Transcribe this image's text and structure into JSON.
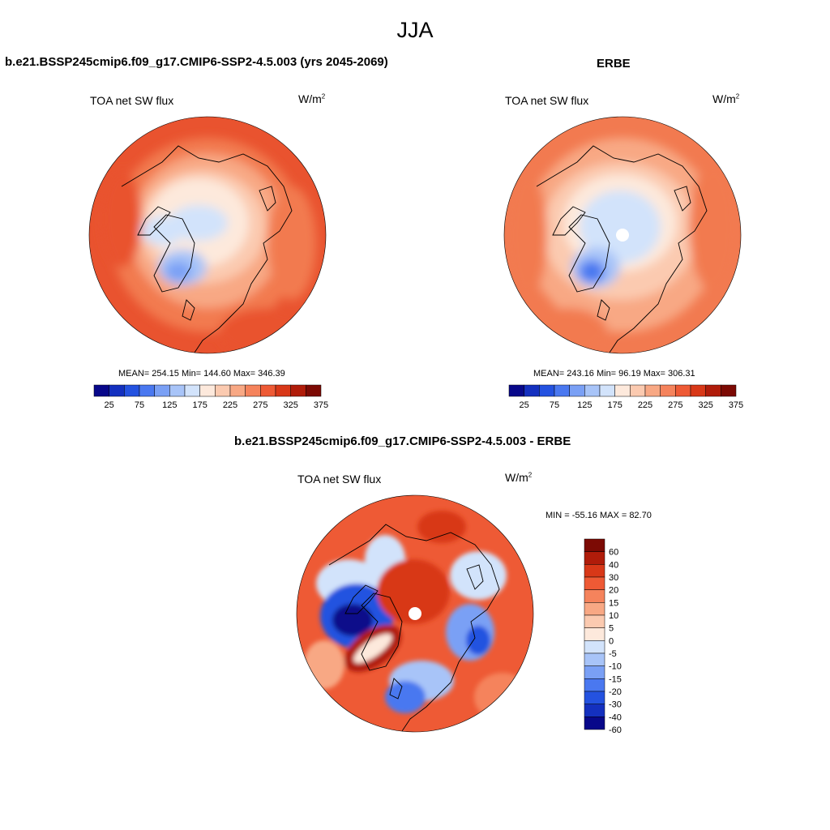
{
  "figure_title": "JJA",
  "panels": [
    {
      "title": "b.e21.BSSP245cmip6.f09_g17.CMIP6-SSP2-4.5.003 (yrs 2045-2069)",
      "variable": "TOA net SW flux",
      "units_base": "W/m",
      "units_exp": "2",
      "stats_text": "MEAN= 254.15  Min= 144.60  Max= 346.39",
      "mean": 254.15,
      "min": 144.6,
      "max": 346.39
    },
    {
      "title": "ERBE",
      "variable": "TOA net SW flux",
      "units_base": "W/m",
      "units_exp": "2",
      "stats_text": "MEAN= 243.16  Min=  96.19  Max= 306.31",
      "mean": 243.16,
      "min": 96.19,
      "max": 306.31
    },
    {
      "title": "b.e21.BSSP245cmip6.f09_g17.CMIP6-SSP2-4.5.003 - ERBE",
      "variable": "TOA net SW flux",
      "units_base": "W/m",
      "units_exp": "2",
      "stats_text": "MIN = -55.16 MAX =  82.70",
      "min": -55.16,
      "max": 82.7
    }
  ],
  "abs_colorbar": {
    "colors": [
      "#08088a",
      "#1430bf",
      "#2452e0",
      "#4a78f0",
      "#7aa0f5",
      "#a8c4f8",
      "#d2e3fb",
      "#fde9dc",
      "#fbcab0",
      "#f8a884",
      "#f5835c",
      "#ee5a35",
      "#d83818",
      "#b01c0a",
      "#7c0a04"
    ],
    "tick_labels": [
      "25",
      "75",
      "125",
      "175",
      "225",
      "275",
      "325",
      "375"
    ]
  },
  "diff_colorbar": {
    "colors": [
      "#7c0a04",
      "#b01c0a",
      "#d83818",
      "#ee5a35",
      "#f5835c",
      "#f8a884",
      "#fbcab0",
      "#fde9dc",
      "#d2e3fb",
      "#a8c4f8",
      "#7aa0f5",
      "#4a78f0",
      "#2452e0",
      "#1430bf",
      "#08088a"
    ],
    "tick_labels": [
      "60",
      "40",
      "30",
      "20",
      "15",
      "10",
      "5",
      "0",
      "-5",
      "-10",
      "-15",
      "-20",
      "-30",
      "-40",
      "-60"
    ]
  }
}
